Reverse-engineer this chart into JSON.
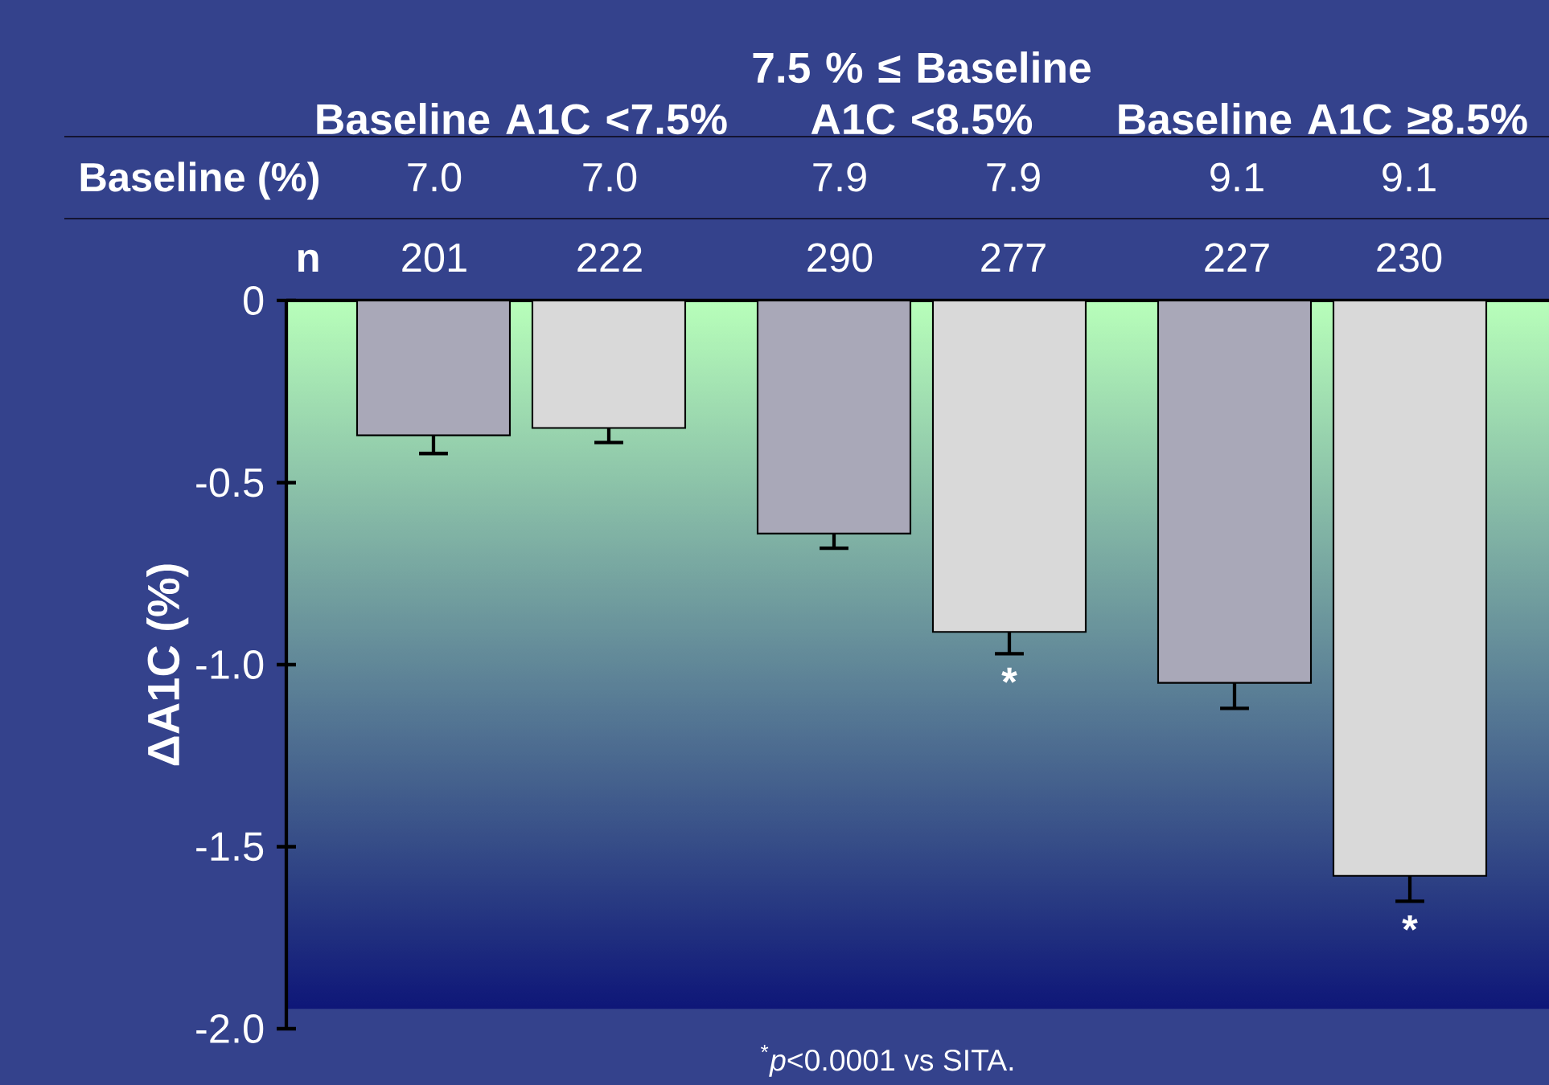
{
  "chart_data": {
    "type": "bar",
    "categories": [
      "Baseline A1C <7.5%",
      "7.5 % ≤ Baseline A1C <8.5%",
      "Baseline A1C ≥8.5%"
    ],
    "ylabel": "ΔA1C (%)",
    "ylim": [
      -2.0,
      0
    ],
    "yticks": [
      {
        "value": -2.0,
        "label": "-2.0"
      },
      {
        "value": -1.5,
        "label": "-1.5"
      },
      {
        "value": -1.0,
        "label": "-1.0"
      },
      {
        "value": -0.5,
        "label": "-0.5"
      },
      {
        "value": 0,
        "label": "0"
      }
    ],
    "series": [
      {
        "color": "#a9a8b8",
        "values": [
          -0.37,
          -0.64,
          -1.05
        ],
        "errors": [
          [
            -0.42,
            -0.37
          ],
          [
            -0.68,
            -0.64
          ],
          [
            -1.12,
            -1.05
          ]
        ]
      },
      {
        "color": "#d9d9d9",
        "values": [
          -0.35,
          -0.91,
          -1.58
        ],
        "errors": [
          [
            -0.39,
            -0.35
          ],
          [
            -0.97,
            -0.91
          ],
          [
            -1.65,
            -1.58
          ]
        ]
      }
    ],
    "annotations": [
      "$^{*}$*p*<0.0001 vs SITA.",
      "Baseline (%)",
      "7.0",
      "7.0",
      "7.9",
      "7.9",
      "9.1",
      "9.1",
      "n",
      "201",
      "222",
      "290",
      "277",
      "227",
      "230",
      "*",
      "*"
    ]
  }
}
